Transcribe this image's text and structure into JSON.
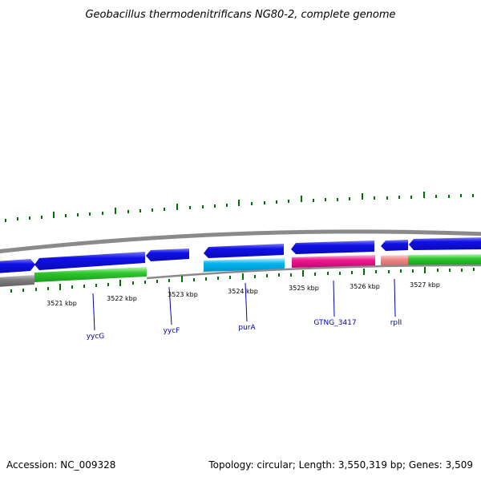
{
  "title": "Geobacillus thermodenitrificans NG80-2, complete genome",
  "accession": "Accession: NC_009328",
  "summary": "Topology: circular; Length: 3,550,319 bp; Genes: 3,509",
  "colors": {
    "backbone": "#808080",
    "cds": "#1010e8",
    "cds_light": "#7c7cff",
    "purA": "#00b4f0",
    "purA_light": "#b8f0ff",
    "GTNG_3417": "#f01890",
    "GTNG_3417_light": "#ffb0dc",
    "rplI": "#f08888",
    "protein_track": "#2ec82e",
    "protein_track_light": "#b8f5b0",
    "ticks": "#007000",
    "gene_label": "#0000b0"
  },
  "scale_labels": [
    "3521 kbp",
    "3522 kbp",
    "3523 kbp",
    "3524 kbp",
    "3525 kbp",
    "3526 kbp",
    "3527 kbp"
  ],
  "gene_labels": [
    "yycG",
    "yycF",
    "purA",
    "GTNG_3417",
    "rplI"
  ]
}
